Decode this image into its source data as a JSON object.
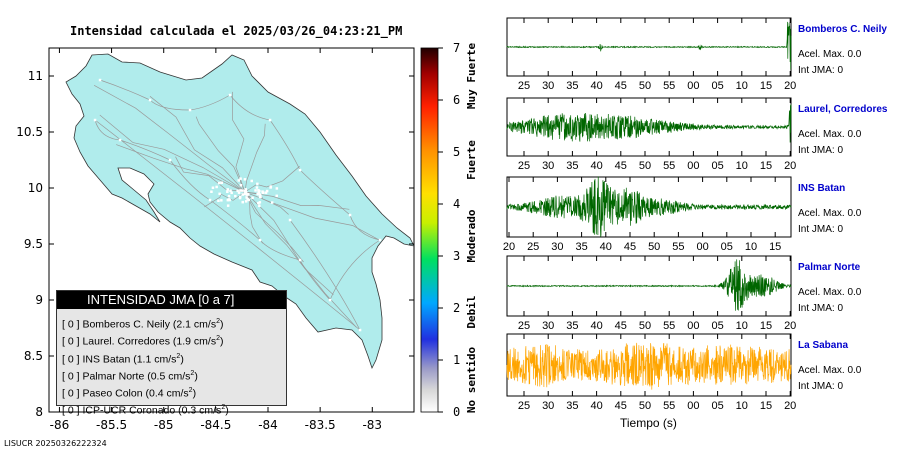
{
  "map": {
    "title": "Intensidad calculada el 2025/03/26_04:23:21_PM",
    "x_ticks": [
      "-86",
      "-85.5",
      "-85",
      "-84.5",
      "-84",
      "-83.5",
      "-83"
    ],
    "y_ticks": [
      "8",
      "8.5",
      "9",
      "9.5",
      "10",
      "10.5",
      "11"
    ],
    "land_color": "#b0ecec",
    "road_color": "#9a9a9a"
  },
  "colorbar": {
    "ticks": [
      "0",
      "1",
      "2",
      "3",
      "4",
      "5",
      "6",
      "7"
    ],
    "labels": [
      "No sentido",
      "Debil",
      "Moderado",
      "Fuerte",
      "Muy Fuerte"
    ]
  },
  "legend": {
    "title": "INTENSIDAD JMA [0 a 7]",
    "rows": [
      {
        "int": "[ 0 ]",
        "station": "Bomberos C. Neily",
        "accel": "(2.1 cm/s",
        "sup": "2",
        "close": ")"
      },
      {
        "int": "[ 0 ]",
        "station": "Laurel. Corredores",
        "accel": "(1.9 cm/s",
        "sup": "2",
        "close": ")"
      },
      {
        "int": "[ 0 ]",
        "station": "INS Batan",
        "accel": "(1.1 cm/s",
        "sup": "2",
        "close": ")"
      },
      {
        "int": "[ 0 ]",
        "station": "Palmar Norte",
        "accel": "(0.5 cm/s",
        "sup": "2",
        "close": ")"
      },
      {
        "int": "[ 0 ]",
        "station": "Paseo Colon",
        "accel": "(0.4 cm/s",
        "sup": "2",
        "close": ")"
      },
      {
        "int": "[ 0 ]",
        "station": "ICP-UCR Coronado",
        "accel": "(0.3 cm/s",
        "sup": "2",
        "close": ")"
      }
    ]
  },
  "footer": "LISUCR 20250326222324",
  "waveforms": {
    "xlabel": "Tiempo (s)",
    "panels": [
      {
        "name": "Bomberos C. Neily",
        "accel": "Acel. Max. 0.0",
        "jma": "Int JMA: 0",
        "color": "#006600",
        "ticks": [
          "25",
          "30",
          "35",
          "40",
          "45",
          "50",
          "55",
          "00",
          "05",
          "10",
          "15",
          "20"
        ],
        "profile": "end"
      },
      {
        "name": "Laurel, Corredores",
        "accel": "Acel. Max. 0.0",
        "jma": "Int JMA: 0",
        "color": "#006600",
        "ticks": [
          "25",
          "30",
          "35",
          "40",
          "45",
          "50",
          "55",
          "00",
          "05",
          "10",
          "15",
          "20"
        ],
        "profile": "mid"
      },
      {
        "name": "INS Batan",
        "accel": "Acel. Max. 0.0",
        "jma": "Int JMA: 0",
        "color": "#006600",
        "ticks": [
          "20",
          "25",
          "30",
          "35",
          "40",
          "45",
          "50",
          "55",
          "00",
          "05",
          "10",
          "15"
        ],
        "profile": "batan"
      },
      {
        "name": "Palmar Norte",
        "accel": "Acel. Max. 0.0",
        "jma": "Int JMA: 0",
        "color": "#006600",
        "ticks": [
          "25",
          "30",
          "35",
          "40",
          "45",
          "50",
          "55",
          "00",
          "05",
          "10",
          "15",
          "20"
        ],
        "profile": "late"
      },
      {
        "name": "La Sabana",
        "accel": "Acel. Max. 0.0",
        "jma": "Int JMA: 0",
        "color": "#ffa500",
        "ticks": [
          "25",
          "30",
          "35",
          "40",
          "45",
          "50",
          "55",
          "00",
          "05",
          "10",
          "15",
          "20"
        ],
        "profile": "noise"
      }
    ]
  },
  "chart_data": [
    {
      "type": "heatmap",
      "title": "Intensidad calculada el 2025/03/26_04:23:21_PM",
      "xlabel": "",
      "ylabel": "",
      "xlim": [
        -86.1,
        -82.6
      ],
      "ylim": [
        8.0,
        11.25
      ],
      "x_ticks": [
        -86,
        -85.5,
        -85,
        -84.5,
        -84,
        -83.5,
        -83
      ],
      "y_ticks": [
        8,
        8.5,
        9,
        9.5,
        10,
        10.5,
        11
      ],
      "color_scale": {
        "min": 0,
        "max": 7,
        "labels": [
          "No sentido",
          "Debil",
          "Moderado",
          "Fuerte",
          "Muy Fuerte"
        ]
      },
      "values_shown": "all 0 (No sentido)"
    },
    {
      "type": "line",
      "xlabel": "Tiempo (s)",
      "series": [
        {
          "name": "Bomberos C. Neily"
        },
        {
          "name": "Laurel, Corredores"
        },
        {
          "name": "INS Batan"
        },
        {
          "name": "Palmar Norte"
        },
        {
          "name": "La Sabana"
        }
      ]
    }
  ]
}
